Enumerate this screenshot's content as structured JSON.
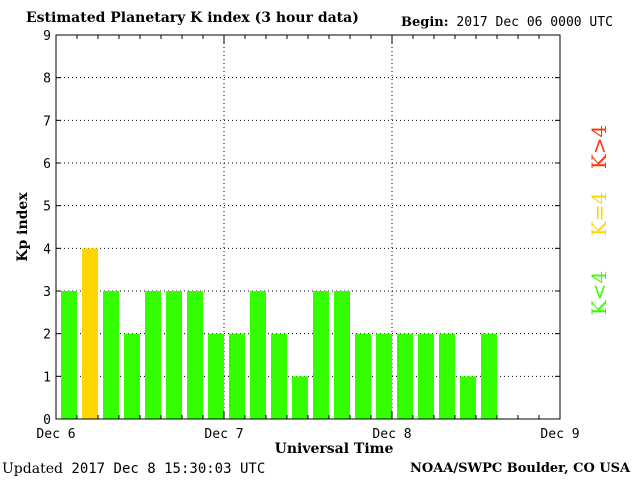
{
  "header": {
    "title": "Estimated Planetary K index (3 hour data)",
    "begin_label": "Begin:",
    "begin_value": "2017 Dec 06 0000 UTC"
  },
  "footer": {
    "updated_label": "Updated",
    "updated_value": "2017 Dec  8 15:30:03 UTC",
    "credit": "NOAA/SWPC Boulder, CO USA"
  },
  "chart_data": {
    "type": "bar",
    "title": "Estimated Planetary K index (3 hour data)",
    "xlabel": "Universal Time",
    "ylabel": "Kp index",
    "ylim": [
      0,
      9
    ],
    "yticks": [
      "0",
      "1",
      "2",
      "3",
      "4",
      "5",
      "6",
      "7",
      "8",
      "9"
    ],
    "x_tick_labels": [
      "Dec 6",
      "Dec 7",
      "Dec 8",
      "Dec 9"
    ],
    "grid": true,
    "categories": [
      "Dec 6 00",
      "Dec 6 03",
      "Dec 6 06",
      "Dec 6 09",
      "Dec 6 12",
      "Dec 6 15",
      "Dec 6 18",
      "Dec 6 21",
      "Dec 7 00",
      "Dec 7 03",
      "Dec 7 06",
      "Dec 7 09",
      "Dec 7 12",
      "Dec 7 15",
      "Dec 7 18",
      "Dec 7 21",
      "Dec 8 00",
      "Dec 8 03",
      "Dec 8 06",
      "Dec 8 09",
      "Dec 8 12"
    ],
    "values": [
      3,
      4,
      3,
      2,
      3,
      3,
      3,
      2,
      2,
      3,
      2,
      1,
      3,
      3,
      2,
      2,
      2,
      2,
      2,
      1,
      2
    ],
    "colors": {
      "below4": "#33ff00",
      "equal4": "#ffd500",
      "above4": "#ff3300"
    },
    "legend": [
      {
        "label": "K<4",
        "color": "#33ff00"
      },
      {
        "label": "K=4",
        "color": "#ffd500"
      },
      {
        "label": "K>4",
        "color": "#ff3300"
      }
    ],
    "legend_position": "right"
  }
}
